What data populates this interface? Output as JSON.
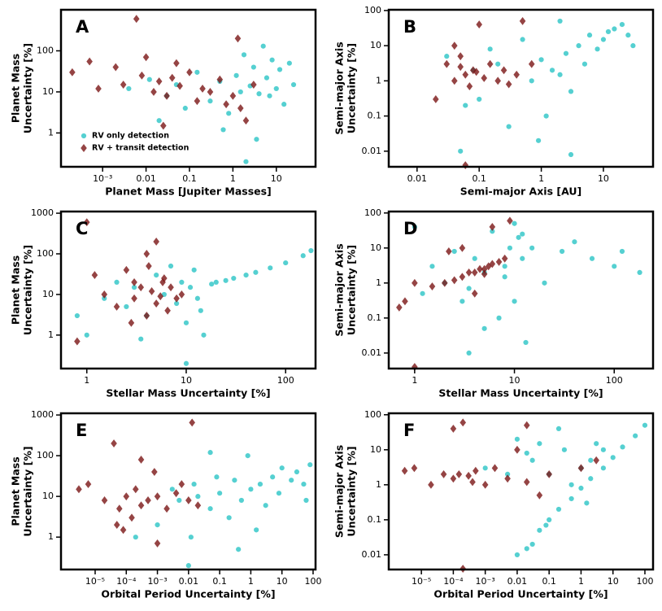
{
  "chart_data": [
    {
      "type": "scatter",
      "panel": "A",
      "xlabel": "Planet Mass [Jupiter Masses]",
      "ylabel": [
        "Planet Mass",
        "Uncertainty [%]"
      ],
      "xscale": "log",
      "yscale": "log",
      "xlim": [
        0.00011,
        80
      ],
      "ylim": [
        0.15,
        1000
      ],
      "xticks": [
        {
          "value": 0.001,
          "label": "10⁻³"
        },
        0.01,
        0.1,
        1,
        10
      ],
      "yticks": [
        1,
        10,
        100
      ],
      "legend": "lower left",
      "series": [
        {
          "name": "RV only detection",
          "color": "#2bc4c6",
          "marker": "circle",
          "x": [
            0.004,
            0.012,
            0.03,
            0.05,
            0.08,
            0.15,
            0.3,
            0.5,
            0.8,
            1.2,
            1.5,
            2,
            2.5,
            3,
            4,
            5,
            6,
            8,
            10,
            12,
            15,
            20,
            25,
            0.02,
            0.6,
            3.5,
            7,
            1.8
          ],
          "y": [
            12,
            20,
            8,
            15,
            4,
            30,
            6,
            18,
            3,
            25,
            10,
            0.2,
            14,
            40,
            9,
            130,
            22,
            60,
            12,
            35,
            5,
            50,
            15,
            2,
            1.2,
            0.7,
            8,
            80
          ]
        },
        {
          "name": "RV + transit detection",
          "color": "#7b1515",
          "marker": "diamond",
          "x": [
            0.0002,
            0.0005,
            0.0008,
            0.002,
            0.003,
            0.006,
            0.008,
            0.01,
            0.015,
            0.02,
            0.03,
            0.04,
            0.06,
            0.1,
            0.15,
            0.2,
            0.3,
            0.5,
            0.7,
            1,
            1.3,
            2,
            3,
            0.025,
            1.5,
            0.05
          ],
          "y": [
            30,
            55,
            12,
            40,
            15,
            600,
            25,
            70,
            10,
            18,
            8,
            22,
            14,
            30,
            6,
            12,
            10,
            20,
            5,
            8,
            200,
            2,
            15,
            1.5,
            4,
            50
          ]
        }
      ]
    },
    {
      "type": "scatter",
      "panel": "B",
      "xlabel": "Semi-major Axis [AU]",
      "ylabel": [
        "Semi-major Axis",
        "Uncertainty [%]"
      ],
      "xscale": "log",
      "yscale": "log",
      "xlim": [
        0.0035,
        63
      ],
      "ylim": [
        0.0036,
        105
      ],
      "xticks": [
        0.01,
        0.1,
        1,
        10
      ],
      "yticks": [
        0.01,
        0.1,
        1,
        10,
        100
      ],
      "series": [
        {
          "color": "#2bc4c6",
          "marker": "circle",
          "x": [
            0.03,
            0.05,
            0.08,
            0.1,
            0.15,
            0.2,
            0.3,
            0.5,
            0.7,
            1,
            1.2,
            1.5,
            2,
            2.5,
            3,
            4,
            5,
            6,
            8,
            10,
            12,
            15,
            20,
            25,
            30,
            0.06,
            0.9,
            2,
            3
          ],
          "y": [
            5,
            0.01,
            2,
            0.3,
            8,
            3,
            0.05,
            15,
            1,
            4,
            0.1,
            2,
            50,
            6,
            0.5,
            10,
            3,
            20,
            8,
            15,
            25,
            30,
            40,
            20,
            10,
            0.2,
            0.02,
            1.5,
            0.008
          ]
        },
        {
          "color": "#7b1515",
          "marker": "diamond",
          "x": [
            0.02,
            0.03,
            0.04,
            0.05,
            0.06,
            0.07,
            0.08,
            0.1,
            0.12,
            0.15,
            0.2,
            0.25,
            0.3,
            0.4,
            0.5,
            0.04,
            0.06,
            0.09,
            0.05,
            0.7
          ],
          "y": [
            0.3,
            3,
            1,
            5,
            1.5,
            0.7,
            2,
            40,
            1.2,
            3,
            1,
            2,
            0.8,
            1.5,
            50,
            10,
            0.004,
            1.8,
            2.5,
            3
          ]
        }
      ]
    },
    {
      "type": "scatter",
      "panel": "C",
      "xlabel": "Stellar Mass Uncertainty [%]",
      "ylabel": [
        "Planet Mass",
        "Uncertainty [%]"
      ],
      "xscale": "log",
      "yscale": "log",
      "xlim": [
        0.55,
        200
      ],
      "ylim": [
        0.15,
        1100
      ],
      "xticks": [
        1,
        10,
        100
      ],
      "yticks": [
        1,
        10,
        100,
        1000
      ],
      "series": [
        {
          "color": "#2bc4c6",
          "marker": "circle",
          "x": [
            0.8,
            1,
            1.5,
            2,
            2.5,
            3,
            4,
            5,
            6,
            7,
            8,
            9,
            10,
            11,
            12,
            13,
            15,
            18,
            20,
            25,
            30,
            40,
            50,
            70,
            100,
            150,
            180,
            10,
            14,
            3.5
          ],
          "y": [
            3,
            1,
            8,
            20,
            5,
            15,
            3,
            30,
            10,
            50,
            6,
            20,
            0.2,
            15,
            40,
            8,
            1,
            18,
            20,
            22,
            25,
            30,
            35,
            45,
            60,
            90,
            120,
            2,
            4,
            0.8
          ]
        },
        {
          "color": "#7b1515",
          "marker": "diamond",
          "x": [
            0.8,
            1,
            1.2,
            1.5,
            2,
            2.5,
            3,
            3,
            3.5,
            4,
            4,
            4.5,
            5,
            5,
            5.5,
            6,
            6.5,
            7,
            8,
            9,
            2.8,
            4.2,
            5.8
          ],
          "y": [
            0.7,
            600,
            30,
            10,
            5,
            40,
            8,
            20,
            15,
            3,
            100,
            12,
            6,
            200,
            9,
            25,
            4,
            15,
            8,
            10,
            2,
            50,
            20
          ]
        }
      ]
    },
    {
      "type": "scatter",
      "panel": "D",
      "xlabel": "Stellar Mass Uncertainty [%]",
      "ylabel": [
        "Semi-major Axis",
        "Uncertainty [%]"
      ],
      "xscale": "log",
      "yscale": "log",
      "xlim": [
        0.55,
        245
      ],
      "ylim": [
        0.0036,
        110
      ],
      "xticks": [
        1,
        10,
        100
      ],
      "yticks": [
        0.01,
        0.1,
        1,
        10,
        100
      ],
      "series": [
        {
          "color": "#2bc4c6",
          "marker": "circle",
          "x": [
            1,
            1.2,
            1.5,
            2,
            2.5,
            3,
            3.5,
            4,
            5,
            6,
            7,
            8,
            9,
            10,
            11,
            12,
            13,
            15,
            20,
            30,
            40,
            60,
            100,
            120,
            180,
            3.5,
            5,
            10,
            12,
            8
          ],
          "y": [
            40,
            0.5,
            3,
            1,
            8,
            0.3,
            0.01,
            5,
            2,
            30,
            0.1,
            3,
            10,
            50,
            20,
            5,
            0.02,
            10,
            1,
            8,
            15,
            5,
            3,
            8,
            2,
            0.7,
            0.05,
            0.3,
            25,
            1.5
          ]
        },
        {
          "color": "#7b1515",
          "marker": "diamond",
          "x": [
            0.7,
            0.8,
            1,
            1,
            1.5,
            2,
            2.5,
            3,
            3.5,
            4,
            4.5,
            5,
            5.5,
            6,
            7,
            8,
            9,
            3,
            4,
            6,
            2.2,
            5
          ],
          "y": [
            0.2,
            0.3,
            0.004,
            1,
            0.8,
            1,
            1.2,
            1.5,
            2,
            2,
            2.5,
            2.5,
            3,
            3.5,
            4,
            5,
            60,
            10,
            0.5,
            40,
            8,
            1.8
          ]
        }
      ]
    },
    {
      "type": "scatter",
      "panel": "E",
      "xlabel": "Orbital Period Uncertainty [%]",
      "ylabel": [
        "Planet Mass",
        "Uncertainty [%]"
      ],
      "xscale": "log",
      "yscale": "log",
      "xlim": [
        8e-07,
        120
      ],
      "ylim": [
        0.16,
        1100
      ],
      "xticks": [
        {
          "value": 1e-05,
          "label": "10⁻⁵"
        },
        {
          "value": 0.0001,
          "label": "10⁻⁴"
        },
        {
          "value": 0.001,
          "label": "10⁻³"
        },
        0.01,
        0.1,
        1,
        10,
        100
      ],
      "yticks": [
        1,
        10,
        100,
        1000
      ],
      "series": [
        {
          "color": "#2bc4c6",
          "marker": "circle",
          "x": [
            0.0002,
            0.001,
            0.003,
            0.005,
            0.01,
            0.015,
            0.02,
            0.05,
            0.08,
            0.1,
            0.2,
            0.3,
            0.5,
            0.8,
            1,
            2,
            3,
            5,
            8,
            10,
            20,
            30,
            50,
            80,
            0.012,
            0.4,
            1.5,
            0.05,
            60
          ],
          "y": [
            1,
            2,
            15,
            8,
            0.2,
            20,
            10,
            5,
            30,
            12,
            3,
            25,
            8,
            100,
            15,
            20,
            6,
            30,
            12,
            50,
            25,
            40,
            20,
            60,
            1,
            0.5,
            1.5,
            120,
            8
          ]
        },
        {
          "color": "#7b1515",
          "marker": "diamond",
          "x": [
            3e-06,
            6e-06,
            2e-05,
            4e-05,
            6e-05,
            0.0001,
            0.00015,
            0.0002,
            0.0003,
            0.0005,
            0.0008,
            0.001,
            0.002,
            0.004,
            0.006,
            0.01,
            0.013,
            0.02,
            5e-05,
            0.0003,
            8e-05,
            0.001
          ],
          "y": [
            15,
            20,
            8,
            200,
            5,
            10,
            3,
            15,
            6,
            8,
            40,
            10,
            5,
            12,
            20,
            8,
            650,
            6,
            2,
            80,
            1.5,
            0.7
          ]
        }
      ]
    },
    {
      "type": "scatter",
      "panel": "F",
      "xlabel": "Orbital Period Uncertainty [%]",
      "ylabel": [
        "Semi-major Axis",
        "Uncertainty [%]"
      ],
      "xscale": "log",
      "yscale": "log",
      "xlim": [
        9.5e-07,
        180
      ],
      "ylim": [
        0.0038,
        110
      ],
      "xticks": [
        {
          "value": 1e-05,
          "label": "10⁻⁵"
        },
        {
          "value": 0.0001,
          "label": "10⁻⁴"
        },
        {
          "value": 0.001,
          "label": "10⁻³"
        },
        0.01,
        0.1,
        1,
        10,
        100
      ],
      "yticks": [
        0.01,
        0.1,
        1,
        10,
        100
      ],
      "series": [
        {
          "color": "#2bc4c6",
          "marker": "circle",
          "x": [
            0.01,
            0.02,
            0.03,
            0.05,
            0.08,
            0.1,
            0.2,
            0.5,
            1,
            2,
            5,
            10,
            20,
            50,
            100,
            0.001,
            0.005,
            0.01,
            0.03,
            0.1,
            0.3,
            0.5,
            1,
            2,
            3,
            5,
            0.2,
            0.05,
            1.5,
            0.02
          ],
          "y": [
            0.01,
            0.015,
            0.02,
            0.05,
            0.07,
            0.1,
            0.2,
            0.4,
            0.8,
            1.5,
            3,
            6,
            12,
            25,
            50,
            3,
            2,
            20,
            5,
            2,
            10,
            1,
            3,
            5,
            15,
            10,
            40,
            15,
            0.3,
            8
          ]
        },
        {
          "color": "#7b1515",
          "marker": "diamond",
          "x": [
            3e-06,
            6e-06,
            2e-05,
            5e-05,
            0.0001,
            0.00015,
            0.0002,
            0.0003,
            0.0005,
            0.001,
            0.002,
            0.005,
            0.01,
            0.02,
            0.05,
            0.1,
            1,
            3,
            0.0002,
            0.0001,
            0.0004,
            0.02
          ],
          "y": [
            2.5,
            3,
            1,
            2,
            1.5,
            2,
            60,
            1.8,
            2.5,
            1,
            3,
            1.5,
            10,
            1.2,
            0.5,
            2,
            3,
            5,
            0.004,
            40,
            1.2,
            50
          ]
        }
      ]
    }
  ]
}
